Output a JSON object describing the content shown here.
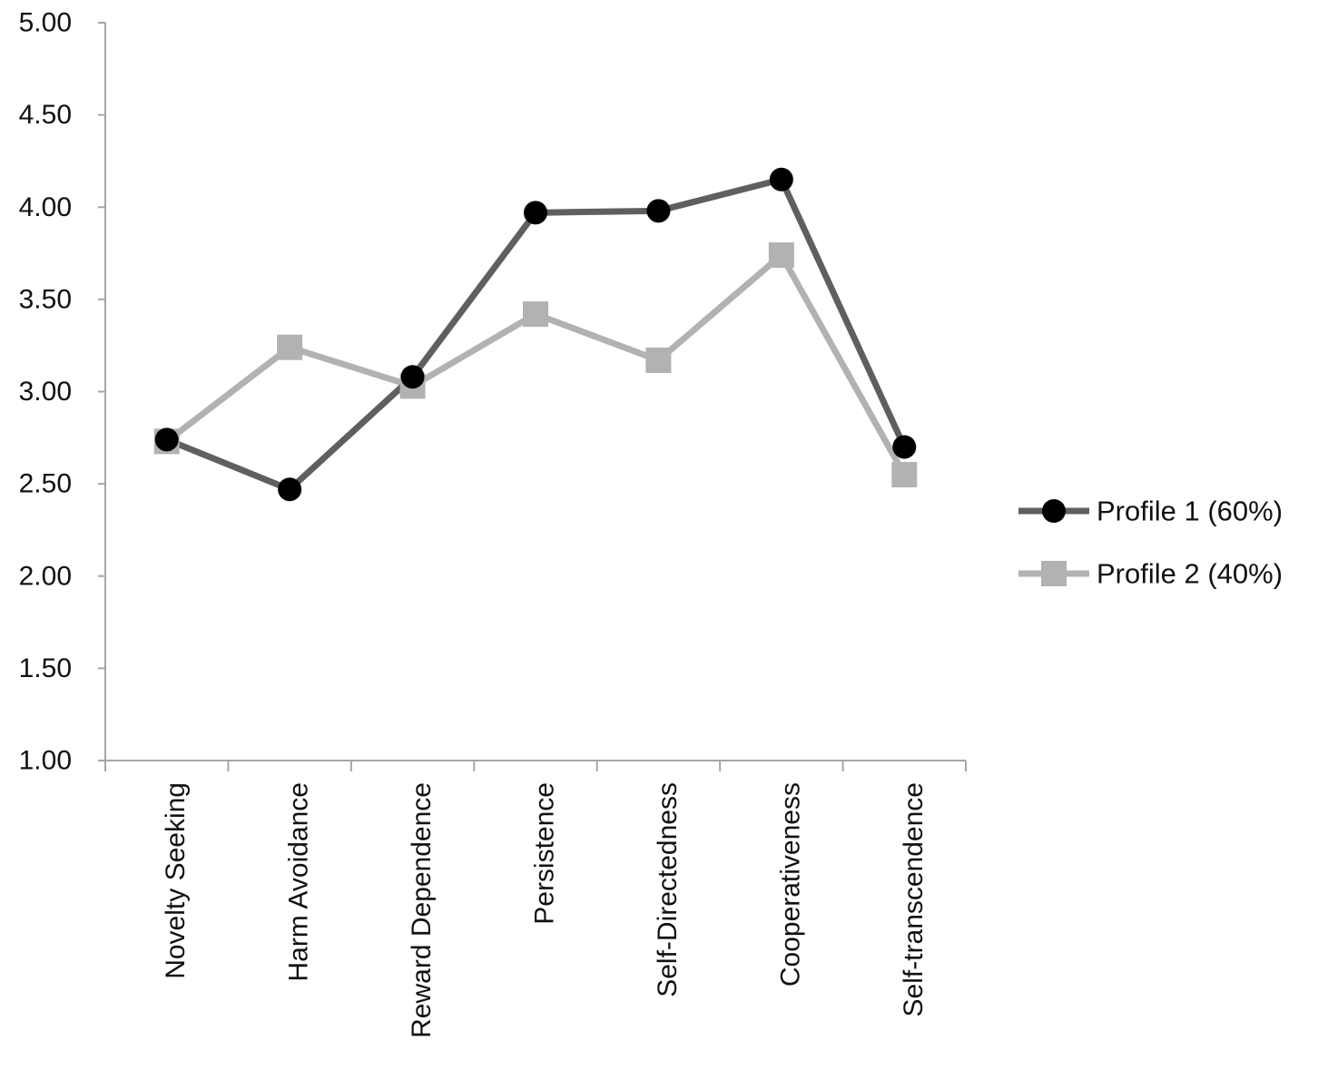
{
  "chart_data": {
    "type": "line",
    "categories": [
      "Novelty Seeking",
      "Harm Avoidance",
      "Reward Dependence",
      "Persistence",
      "Self-Directedness",
      "Cooperativeness",
      "Self-transcendence"
    ],
    "series": [
      {
        "name": "Profile 1 (60%)",
        "values": [
          2.74,
          2.47,
          3.08,
          3.97,
          3.98,
          4.15,
          2.7
        ],
        "color": "#5f5f5f",
        "marker": "circle",
        "marker_color": "#000000"
      },
      {
        "name": "Profile 2 (40%)",
        "values": [
          2.73,
          3.24,
          3.03,
          3.42,
          3.17,
          3.74,
          2.55
        ],
        "color": "#b2b2b2",
        "marker": "square",
        "marker_color": "#b2b2b2"
      }
    ],
    "title": "",
    "xlabel": "",
    "ylabel": "",
    "ylim": [
      1.0,
      5.0
    ],
    "yticks": [
      "1.00",
      "1.50",
      "2.00",
      "2.50",
      "3.00",
      "3.50",
      "4.00",
      "4.50",
      "5.00"
    ],
    "grid": false,
    "legend_position": "right",
    "axis_color": "#a6a6a6"
  }
}
